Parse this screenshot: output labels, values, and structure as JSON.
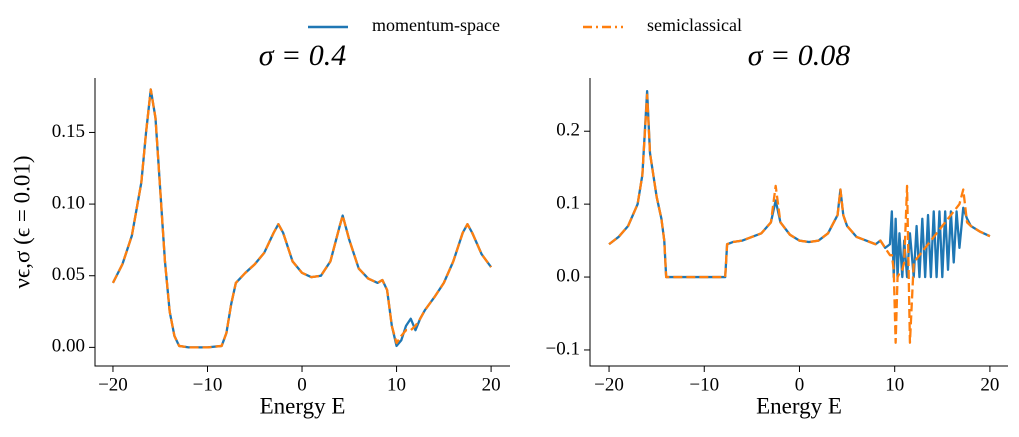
{
  "chart_data": [
    {
      "type": "line",
      "title": "σ = 0.4",
      "x_label": "Energy E",
      "y_label": "νϵ,σ (ϵ = 0.01)",
      "xlim": [
        -21.9,
        22
      ],
      "ylim": [
        -0.013,
        0.188
      ],
      "xticks": [
        {
          "value": -20,
          "label": "−20"
        },
        {
          "value": -10,
          "label": "−10"
        },
        0,
        10,
        20
      ],
      "yticks": [
        {
          "value": 0,
          "label": "0.00"
        },
        0.05,
        {
          "value": 0.1,
          "label": "0.10"
        },
        0.15
      ],
      "x": [
        -20,
        -19,
        -18,
        -17,
        -16.5,
        -16,
        -15.5,
        -15,
        -14.5,
        -14,
        -13.5,
        -13,
        -12,
        -10,
        -8.5,
        -8,
        -7.5,
        -7,
        -6,
        -5,
        -4,
        -3,
        -2.5,
        -2,
        -1,
        0,
        1,
        2,
        3,
        4,
        4.3,
        5,
        6,
        7,
        8,
        8.5,
        9,
        9.5,
        10,
        10.5,
        11,
        11.5,
        12,
        12.5,
        13,
        14,
        15,
        16,
        17,
        17.5,
        18,
        19,
        20
      ],
      "series": [
        {
          "name": "momentum-space",
          "color": "#1f77b4",
          "linestyle": "solid",
          "values": [
            0.045,
            0.058,
            0.078,
            0.115,
            0.15,
            0.18,
            0.16,
            0.11,
            0.06,
            0.025,
            0.008,
            0.001,
            0,
            0,
            0.001,
            0.01,
            0.03,
            0.045,
            0.052,
            0.058,
            0.066,
            0.08,
            0.086,
            0.08,
            0.06,
            0.052,
            0.049,
            0.05,
            0.06,
            0.085,
            0.092,
            0.075,
            0.055,
            0.048,
            0.045,
            0.047,
            0.04,
            0.015,
            0.001,
            0.005,
            0.015,
            0.02,
            0.012,
            0.02,
            0.026,
            0.035,
            0.045,
            0.06,
            0.08,
            0.086,
            0.08,
            0.065,
            0.056
          ]
        },
        {
          "name": "semiclassical",
          "color": "#ff7f0e",
          "linestyle": "dashed",
          "values": [
            0.045,
            0.058,
            0.078,
            0.115,
            0.15,
            0.18,
            0.16,
            0.11,
            0.06,
            0.025,
            0.008,
            0.001,
            0,
            0,
            0.001,
            0.01,
            0.03,
            0.045,
            0.052,
            0.058,
            0.066,
            0.08,
            0.086,
            0.08,
            0.06,
            0.052,
            0.049,
            0.05,
            0.06,
            0.085,
            0.092,
            0.075,
            0.055,
            0.048,
            0.045,
            0.047,
            0.04,
            0.015,
            0.003,
            0.008,
            0.012,
            0.012,
            0.015,
            0.02,
            0.026,
            0.035,
            0.045,
            0.06,
            0.08,
            0.086,
            0.08,
            0.065,
            0.056
          ]
        }
      ]
    },
    {
      "type": "line",
      "title": "σ = 0.08",
      "x_label": "Energy E",
      "xlim": [
        -22,
        21.9
      ],
      "ylim": [
        -0.122,
        0.273
      ],
      "xticks": [
        {
          "value": -20,
          "label": "−20"
        },
        {
          "value": -10,
          "label": "−10"
        },
        0,
        10,
        20
      ],
      "yticks": [
        {
          "value": -0.1,
          "label": "−0.1"
        },
        {
          "value": 0,
          "label": "0.0"
        },
        0.1,
        0.2
      ],
      "x": [
        -20,
        -19,
        -18,
        -17,
        -16.5,
        -16,
        -15.7,
        -15,
        -14.5,
        -14.2,
        -14,
        -12,
        -10,
        -8,
        -7.8,
        -7.6,
        -7,
        -6,
        -5,
        -4,
        -3,
        -2.5,
        -2,
        -1,
        0,
        1,
        2,
        3,
        4,
        4.3,
        4.6,
        5,
        6,
        7,
        8,
        8.5,
        9,
        9.5,
        9.7,
        9.9,
        10.1,
        10.3,
        10.5,
        10.8,
        11,
        11.3,
        11.6,
        12,
        12.3,
        12.6,
        12.9,
        13.2,
        13.5,
        13.8,
        14.1,
        14.4,
        14.7,
        15,
        15.3,
        15.6,
        15.9,
        16.2,
        16.5,
        16.8,
        17.2,
        17.6,
        18,
        19,
        20
      ],
      "series": [
        {
          "color": "#1f77b4",
          "linestyle": "solid",
          "values": [
            0.045,
            0.055,
            0.07,
            0.1,
            0.14,
            0.255,
            0.17,
            0.11,
            0.08,
            0.05,
            0,
            0,
            0,
            0,
            0,
            0.045,
            0.048,
            0.05,
            0.055,
            0.06,
            0.075,
            0.105,
            0.075,
            0.058,
            0.05,
            0.048,
            0.05,
            0.06,
            0.085,
            0.12,
            0.085,
            0.07,
            0.055,
            0.05,
            0.045,
            0.05,
            0.04,
            0.045,
            0.09,
            0,
            0.08,
            0,
            0.06,
            0,
            0.05,
            0,
            0.06,
            0,
            0.07,
            0,
            0.08,
            0,
            0.085,
            0,
            0.09,
            0,
            0.09,
            0,
            0.09,
            0.01,
            0.09,
            0.02,
            0.09,
            0.04,
            0.095,
            0.08,
            0.07,
            0.062,
            0.056
          ]
        },
        {
          "color": "#ff7f0e",
          "linestyle": "dashed",
          "values": [
            0.045,
            0.055,
            0.07,
            0.1,
            0.14,
            0.25,
            0.17,
            0.11,
            0.08,
            0.05,
            0,
            0,
            0,
            0,
            0,
            0.045,
            0.048,
            0.05,
            0.055,
            0.06,
            0.075,
            0.125,
            0.075,
            0.058,
            0.05,
            0.048,
            0.05,
            0.06,
            0.085,
            0.12,
            0.085,
            0.07,
            0.055,
            0.05,
            0.045,
            0.05,
            0.04,
            0.03,
            0.03,
            0.01,
            -0.09,
            0,
            0.005,
            0.01,
            0.02,
            0.125,
            -0.09,
            0.02,
            0.025,
            0.03,
            0.035,
            0.04,
            0.045,
            0.05,
            0.055,
            0.06,
            0.065,
            0.07,
            0.075,
            0.08,
            0.085,
            0.09,
            0.095,
            0.1,
            0.12,
            0.075,
            0.07,
            0.062,
            0.056
          ]
        }
      ]
    }
  ]
}
